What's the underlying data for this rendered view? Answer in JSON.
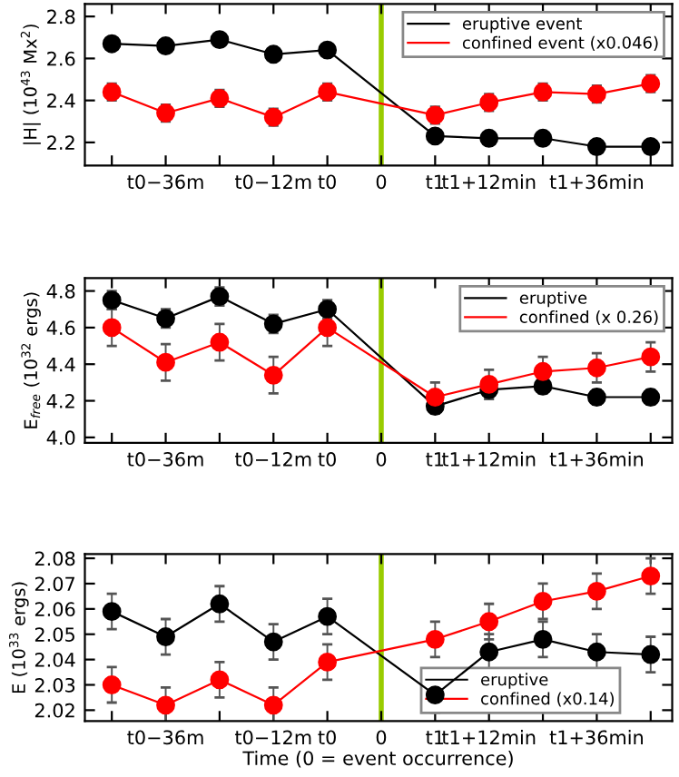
{
  "chart_data": [
    {
      "type": "line",
      "ylabel": "|H| (10$^{43}$ Mx$^{2}$)",
      "categories": [
        null,
        "t0−36m",
        null,
        "t0−12m",
        "t0",
        "0",
        "t1",
        "t1+12min",
        null,
        "t1+36min",
        null
      ],
      "series": [
        {
          "name": "eruptive event",
          "color": "#000000",
          "values": [
            2.67,
            2.66,
            2.69,
            2.62,
            2.64,
            null,
            2.23,
            2.22,
            2.22,
            2.18,
            2.18
          ],
          "errors": [
            0.01,
            0.01,
            0.01,
            0.01,
            0.01,
            null,
            0.01,
            0.01,
            0.01,
            0.01,
            0.01
          ]
        },
        {
          "name": "confined event (x0.046)",
          "color": "#ff0000",
          "values": [
            2.44,
            2.34,
            2.41,
            2.32,
            2.44,
            null,
            2.33,
            2.39,
            2.44,
            2.43,
            2.48
          ],
          "errors": [
            0.04,
            0.04,
            0.04,
            0.04,
            0.04,
            null,
            0.04,
            0.04,
            0.04,
            0.04,
            0.04
          ]
        }
      ],
      "ylim": [
        2.09,
        2.86
      ],
      "yticks": [
        2.2,
        2.4,
        2.6,
        2.8
      ],
      "ref_lines": [
        {
          "axis": "x",
          "value": "0",
          "label": null,
          "color": "#99cc00"
        }
      ],
      "marker": "circle",
      "line_style": "solid",
      "grid": false,
      "legend": "top right"
    },
    {
      "type": "line",
      "ylabel": "E$_{free}$ (10$^{32}$ ergs)",
      "categories": [
        null,
        "t0−36m",
        null,
        "t0−12m",
        "t0",
        "0",
        "t1",
        "t1+12min",
        null,
        "t1+36min",
        null
      ],
      "series": [
        {
          "name": "eruptive",
          "color": "#000000",
          "values": [
            4.75,
            4.65,
            4.77,
            4.62,
            4.7,
            null,
            4.17,
            4.26,
            4.28,
            4.22,
            4.22
          ],
          "errors": [
            0.05,
            0.05,
            0.05,
            0.05,
            0.05,
            null,
            0.04,
            0.04,
            0.04,
            0.04,
            0.04
          ]
        },
        {
          "name": "confined (x 0.26)",
          "color": "#ff0000",
          "values": [
            4.6,
            4.41,
            4.52,
            4.34,
            4.6,
            null,
            4.22,
            4.29,
            4.36,
            4.38,
            4.44
          ],
          "errors": [
            0.1,
            0.1,
            0.1,
            0.1,
            0.1,
            null,
            0.08,
            0.08,
            0.08,
            0.08,
            0.08
          ]
        }
      ],
      "ylim": [
        3.97,
        4.87
      ],
      "yticks": [
        {
          "value": 4.0,
          "label": "4.0"
        },
        4.2,
        4.4,
        4.6,
        4.8
      ],
      "ref_lines": [
        {
          "axis": "x",
          "value": "0",
          "label": null,
          "color": "#99cc00"
        }
      ],
      "marker": "circle",
      "line_style": "solid",
      "grid": false,
      "legend": "top right"
    },
    {
      "type": "line",
      "xlabel": "Time (0 = event occurrence)",
      "ylabel": "E (10$^{33}$ ergs)",
      "categories": [
        null,
        "t0−36m",
        null,
        "t0−12m",
        "t0",
        "0",
        "t1",
        "t1+12min",
        null,
        "t1+36min",
        null
      ],
      "series": [
        {
          "name": "eruptive",
          "color": "#000000",
          "values": [
            2.059,
            2.049,
            2.062,
            2.047,
            2.057,
            null,
            2.026,
            2.043,
            2.048,
            2.043,
            2.042
          ],
          "errors": [
            0.007,
            0.007,
            0.007,
            0.007,
            0.007,
            null,
            0.007,
            0.007,
            0.007,
            0.007,
            0.007
          ]
        },
        {
          "name": "confined (x0.14)",
          "color": "#ff0000",
          "values": [
            2.03,
            2.022,
            2.032,
            2.022,
            2.039,
            null,
            2.048,
            2.055,
            2.063,
            2.067,
            2.073
          ],
          "errors": [
            0.007,
            0.007,
            0.007,
            0.007,
            0.007,
            null,
            0.007,
            0.007,
            0.007,
            0.007,
            0.007
          ]
        }
      ],
      "ylim": [
        2.0157,
        2.0817
      ],
      "yticks": [
        2.02,
        2.03,
        2.04,
        2.05,
        2.06,
        2.07,
        2.08
      ],
      "ref_lines": [
        {
          "axis": "x",
          "value": "0",
          "label": null,
          "color": "#99cc00"
        }
      ],
      "marker": "circle",
      "line_style": "solid",
      "grid": false,
      "legend": "bottom right"
    }
  ]
}
